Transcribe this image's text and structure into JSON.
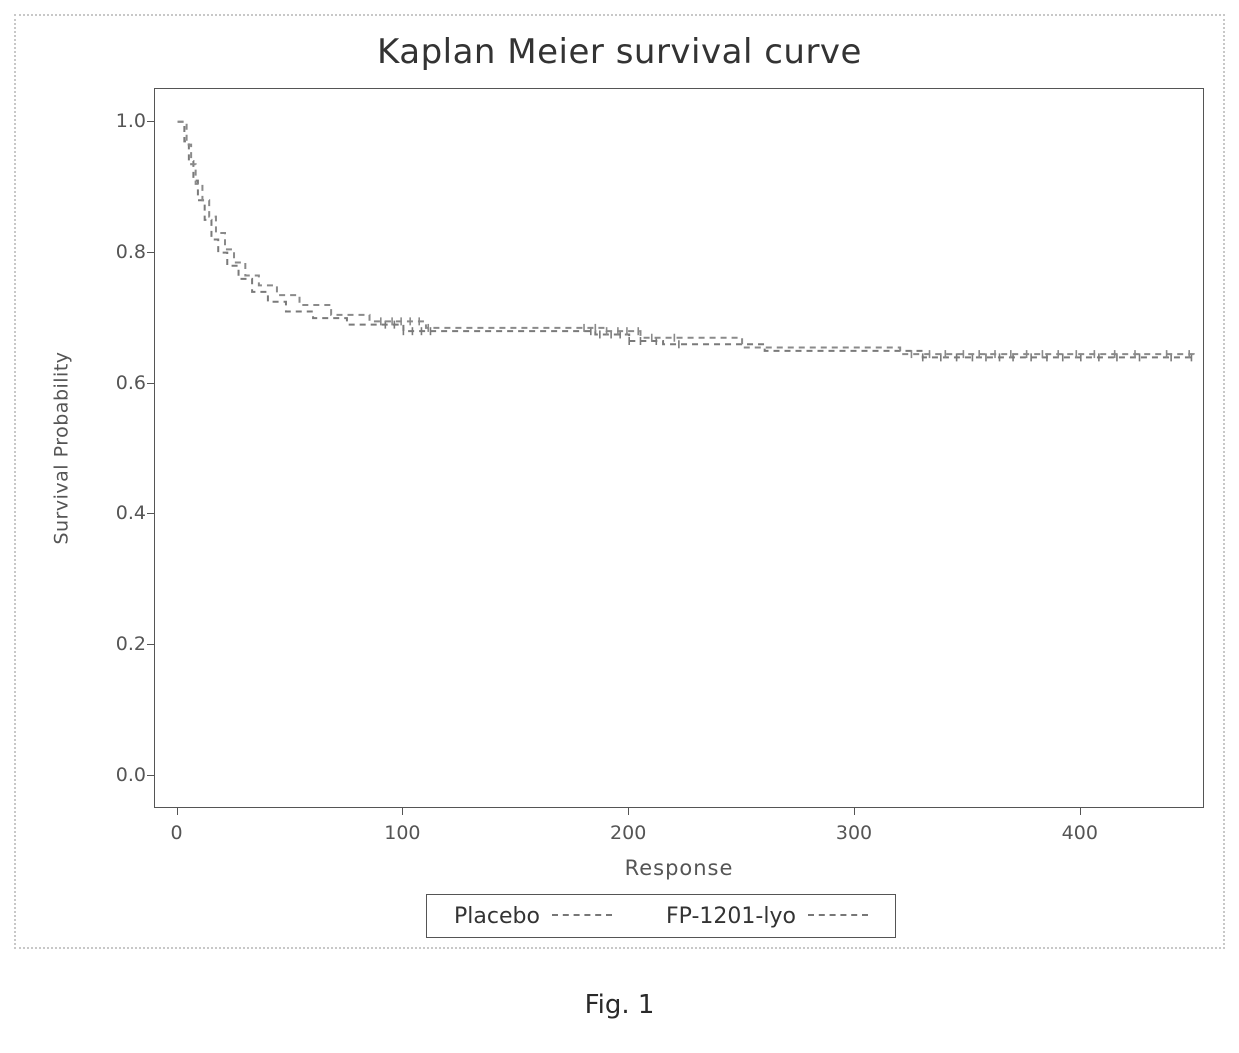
{
  "figure_caption": "Fig. 1",
  "chart": {
    "type": "kaplan-meier-step",
    "title": "Kaplan Meier survival curve",
    "title_fontsize": 34,
    "xlabel": "Response",
    "ylabel": "Survival Probability",
    "label_fontsize": 20,
    "tick_fontsize": 19,
    "xlim": [
      -10,
      455
    ],
    "ylim": [
      -0.05,
      1.05
    ],
    "xtick_step": 100,
    "ytick_step": 0.2,
    "xticks": [
      0,
      100,
      200,
      300,
      400
    ],
    "yticks": [
      0.0,
      0.2,
      0.4,
      0.6,
      0.8,
      1.0
    ],
    "background_color": "#ffffff",
    "axis_color": "#555555",
    "line_width": 2.0,
    "dash_pattern": "6 5",
    "censor_mark_height": 8,
    "series": [
      {
        "name": "Placebo",
        "color": "#7a7a7a",
        "points": [
          [
            0,
            1.0
          ],
          [
            3,
            0.97
          ],
          [
            5,
            0.94
          ],
          [
            7,
            0.91
          ],
          [
            9,
            0.88
          ],
          [
            12,
            0.85
          ],
          [
            15,
            0.82
          ],
          [
            18,
            0.8
          ],
          [
            22,
            0.78
          ],
          [
            27,
            0.76
          ],
          [
            33,
            0.74
          ],
          [
            40,
            0.725
          ],
          [
            48,
            0.71
          ],
          [
            60,
            0.7
          ],
          [
            75,
            0.69
          ],
          [
            100,
            0.68
          ],
          [
            185,
            0.675
          ],
          [
            200,
            0.665
          ],
          [
            215,
            0.66
          ],
          [
            260,
            0.65
          ],
          [
            330,
            0.64
          ],
          [
            450,
            0.637
          ]
        ],
        "censor_x": [
          92,
          96,
          100,
          104,
          108,
          112,
          183,
          187,
          192,
          196,
          200,
          205,
          212,
          222,
          330,
          338,
          345,
          352,
          358,
          364,
          370,
          378,
          385,
          392,
          400,
          408,
          416,
          426,
          440,
          449
        ]
      },
      {
        "name": "FP-1201-lyo",
        "color": "#8a8a8a",
        "points": [
          [
            0,
            1.0
          ],
          [
            4,
            0.965
          ],
          [
            6,
            0.935
          ],
          [
            8,
            0.905
          ],
          [
            11,
            0.88
          ],
          [
            14,
            0.855
          ],
          [
            17,
            0.83
          ],
          [
            21,
            0.805
          ],
          [
            25,
            0.785
          ],
          [
            30,
            0.765
          ],
          [
            36,
            0.75
          ],
          [
            44,
            0.735
          ],
          [
            54,
            0.72
          ],
          [
            68,
            0.705
          ],
          [
            85,
            0.695
          ],
          [
            110,
            0.685
          ],
          [
            190,
            0.68
          ],
          [
            205,
            0.67
          ],
          [
            250,
            0.655
          ],
          [
            320,
            0.645
          ],
          [
            450,
            0.64
          ]
        ],
        "censor_x": [
          90,
          95,
          99,
          103,
          107,
          111,
          180,
          185,
          190,
          195,
          199,
          204,
          210,
          220,
          325,
          333,
          340,
          348,
          355,
          362,
          369,
          376,
          383,
          390,
          398,
          406,
          415,
          424,
          438,
          448
        ]
      }
    ],
    "legend": {
      "items": [
        "Placebo",
        "FP-1201-lyo"
      ],
      "position": "below-x-axis-centered",
      "fontsize": 22,
      "border_color": "#555555"
    },
    "frame": {
      "dotted_outer_border_color": "#c8c8c8"
    }
  }
}
